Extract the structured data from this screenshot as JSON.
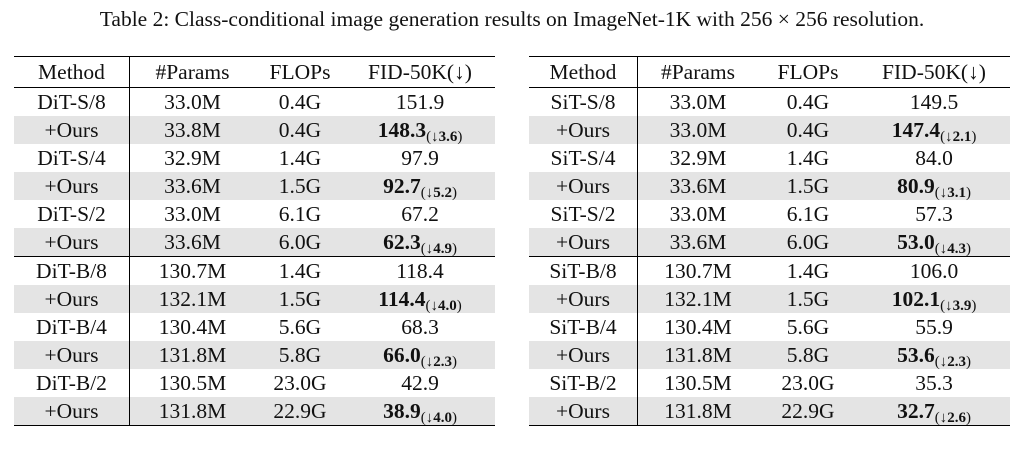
{
  "caption": "Table 2: Class-conditional image generation results on ImageNet-1K with 256 × 256 resolution.",
  "headers": [
    "Method",
    "#Params",
    "FLOPs",
    "FID-50K(↓)"
  ],
  "left": {
    "group1": [
      {
        "method": "DiT-S/8",
        "params": "33.0M",
        "flops": "0.4G",
        "fid": "151.9"
      },
      {
        "method": "+Ours",
        "params": "33.8M",
        "flops": "0.4G",
        "fid": "148.3",
        "delta_arrow": "(↓",
        "delta_val": "3.6",
        "delta_close": ")"
      },
      {
        "method": "DiT-S/4",
        "params": "32.9M",
        "flops": "1.4G",
        "fid": "97.9"
      },
      {
        "method": "+Ours",
        "params": "33.6M",
        "flops": "1.5G",
        "fid": "92.7",
        "delta_arrow": "(↓",
        "delta_val": "5.2",
        "delta_close": ")"
      },
      {
        "method": "DiT-S/2",
        "params": "33.0M",
        "flops": "6.1G",
        "fid": "67.2"
      },
      {
        "method": "+Ours",
        "params": "33.6M",
        "flops": "6.0G",
        "fid": "62.3",
        "delta_arrow": "(↓",
        "delta_val": "4.9",
        "delta_close": ")"
      }
    ],
    "group2": [
      {
        "method": "DiT-B/8",
        "params": "130.7M",
        "flops": "1.4G",
        "fid": "118.4"
      },
      {
        "method": "+Ours",
        "params": "132.1M",
        "flops": "1.5G",
        "fid": "114.4",
        "delta_arrow": "(↓",
        "delta_val": "4.0",
        "delta_close": ")"
      },
      {
        "method": "DiT-B/4",
        "params": "130.4M",
        "flops": "5.6G",
        "fid": "68.3"
      },
      {
        "method": "+Ours",
        "params": "131.8M",
        "flops": "5.8G",
        "fid": "66.0",
        "delta_arrow": "(↓",
        "delta_val": "2.3",
        "delta_close": ")"
      },
      {
        "method": "DiT-B/2",
        "params": "130.5M",
        "flops": "23.0G",
        "fid": "42.9"
      },
      {
        "method": "+Ours",
        "params": "131.8M",
        "flops": "22.9G",
        "fid": "38.9",
        "delta_arrow": "(↓",
        "delta_val": "4.0",
        "delta_close": ")"
      }
    ]
  },
  "right": {
    "group1": [
      {
        "method": "SiT-S/8",
        "params": "33.0M",
        "flops": "0.4G",
        "fid": "149.5"
      },
      {
        "method": "+Ours",
        "params": "33.0M",
        "flops": "0.4G",
        "fid": "147.4",
        "delta_arrow": "(↓",
        "delta_val": "2.1",
        "delta_close": ")"
      },
      {
        "method": "SiT-S/4",
        "params": "32.9M",
        "flops": "1.4G",
        "fid": "84.0"
      },
      {
        "method": "+Ours",
        "params": "33.6M",
        "flops": "1.5G",
        "fid": "80.9",
        "delta_arrow": "(↓",
        "delta_val": "3.1",
        "delta_close": ")"
      },
      {
        "method": "SiT-S/2",
        "params": "33.0M",
        "flops": "6.1G",
        "fid": "57.3"
      },
      {
        "method": "+Ours",
        "params": "33.6M",
        "flops": "6.0G",
        "fid": "53.0",
        "delta_arrow": "(↓",
        "delta_val": "4.3",
        "delta_close": ")"
      }
    ],
    "group2": [
      {
        "method": "SiT-B/8",
        "params": "130.7M",
        "flops": "1.4G",
        "fid": "106.0"
      },
      {
        "method": "+Ours",
        "params": "132.1M",
        "flops": "1.5G",
        "fid": "102.1",
        "delta_arrow": "(↓",
        "delta_val": "3.9",
        "delta_close": ")"
      },
      {
        "method": "SiT-B/4",
        "params": "130.4M",
        "flops": "5.6G",
        "fid": "55.9"
      },
      {
        "method": "+Ours",
        "params": "131.8M",
        "flops": "5.8G",
        "fid": "53.6",
        "delta_arrow": "(↓",
        "delta_val": "2.3",
        "delta_close": ")"
      },
      {
        "method": "SiT-B/2",
        "params": "130.5M",
        "flops": "23.0G",
        "fid": "35.3"
      },
      {
        "method": "+Ours",
        "params": "131.8M",
        "flops": "22.9G",
        "fid": "32.7",
        "delta_arrow": "(↓",
        "delta_val": "2.6",
        "delta_close": ")"
      }
    ]
  }
}
